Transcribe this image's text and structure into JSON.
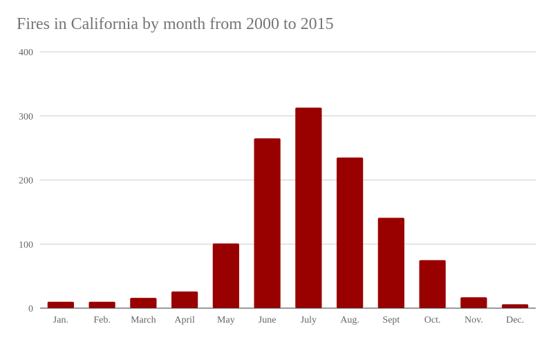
{
  "chart_data": {
    "type": "bar",
    "title": "Fires in California by month from 2000 to 2015",
    "xlabel": "",
    "ylabel": "",
    "categories": [
      "Jan.",
      "Feb.",
      "March",
      "April",
      "May",
      "June",
      "July",
      "Aug.",
      "Sept",
      "Oct.",
      "Nov.",
      "Dec."
    ],
    "values": [
      10,
      10,
      16,
      26,
      101,
      265,
      313,
      235,
      141,
      75,
      17,
      6
    ],
    "ylim": [
      0,
      400
    ],
    "yticks": [
      0,
      100,
      200,
      300,
      400
    ],
    "ytick_labels": [
      "0",
      "100",
      "200",
      "300",
      "400"
    ],
    "grid": true,
    "legend": "none",
    "colors": {
      "bar": "#990000",
      "gridline": "#cccccc",
      "axis": "#333333",
      "text": "#666666",
      "title": "#757575"
    }
  }
}
